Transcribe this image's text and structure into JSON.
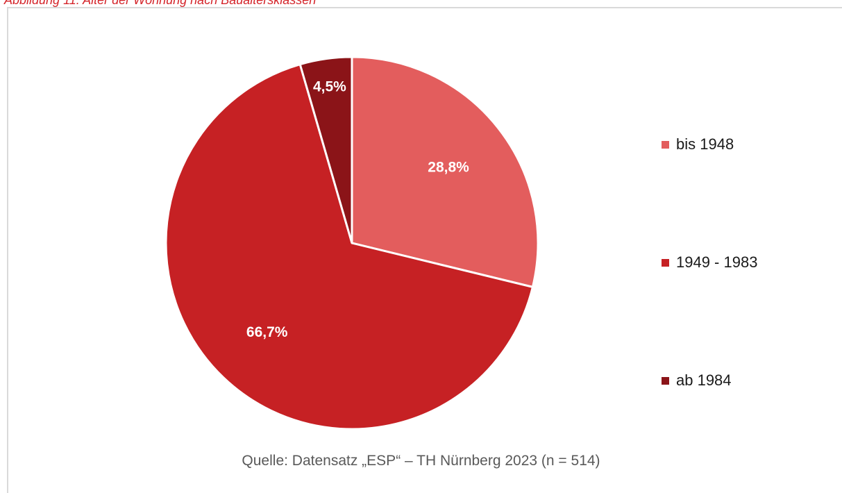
{
  "caption": "Abbildung 11: Alter der Wohnung nach Baualtersklassen",
  "source": "Quelle: Datensatz „ESP“ – TH Nürnberg 2023 (n = 514)",
  "chart_data": {
    "type": "pie",
    "title": "",
    "categories": [
      "bis 1948",
      "1949 - 1983",
      "ab 1984"
    ],
    "values": [
      28.8,
      66.7,
      4.5
    ],
    "labels": [
      "28,8%",
      "66,7%",
      "4,5%"
    ],
    "colors": [
      "#e35d5d",
      "#c62124",
      "#8b1418"
    ],
    "legend_position": "right"
  }
}
